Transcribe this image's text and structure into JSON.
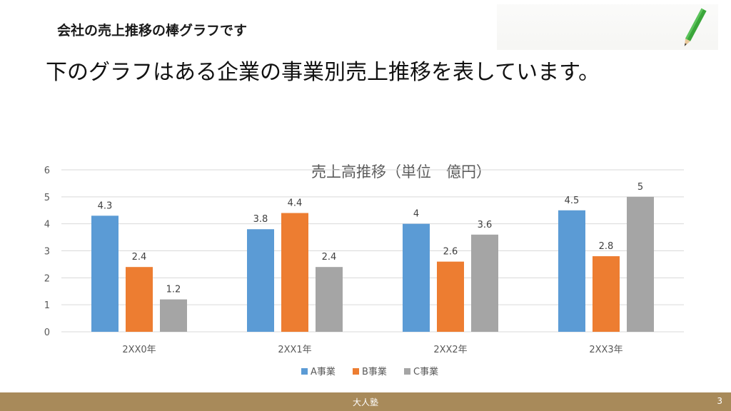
{
  "header": {
    "title": "会社の売上推移の棒グラフです"
  },
  "subtitle": "下のグラフはある企業の事業別売上推移を表しています。",
  "footer": {
    "center": "大人塾",
    "page": "3"
  },
  "colors": {
    "A": "#5b9bd5",
    "B": "#ed7d31",
    "C": "#a5a5a5",
    "footer": "#a88a5a",
    "grid": "#d9d9d9"
  },
  "chart_data": {
    "type": "bar",
    "title": "売上高推移（単位　億円）",
    "categories": [
      "2XX0年",
      "2XX1年",
      "2XX2年",
      "2XX3年"
    ],
    "series": [
      {
        "name": "A事業",
        "values": [
          4.3,
          3.8,
          4,
          4.5
        ]
      },
      {
        "name": "B事業",
        "values": [
          2.4,
          4.4,
          2.6,
          2.8
        ]
      },
      {
        "name": "C事業",
        "values": [
          1.2,
          2.4,
          3.6,
          5
        ]
      }
    ],
    "ylim": [
      0,
      6
    ],
    "yticks": [
      "0",
      "1",
      "2",
      "3",
      "4",
      "5",
      "6"
    ],
    "grid": true,
    "legend": "bottom"
  }
}
